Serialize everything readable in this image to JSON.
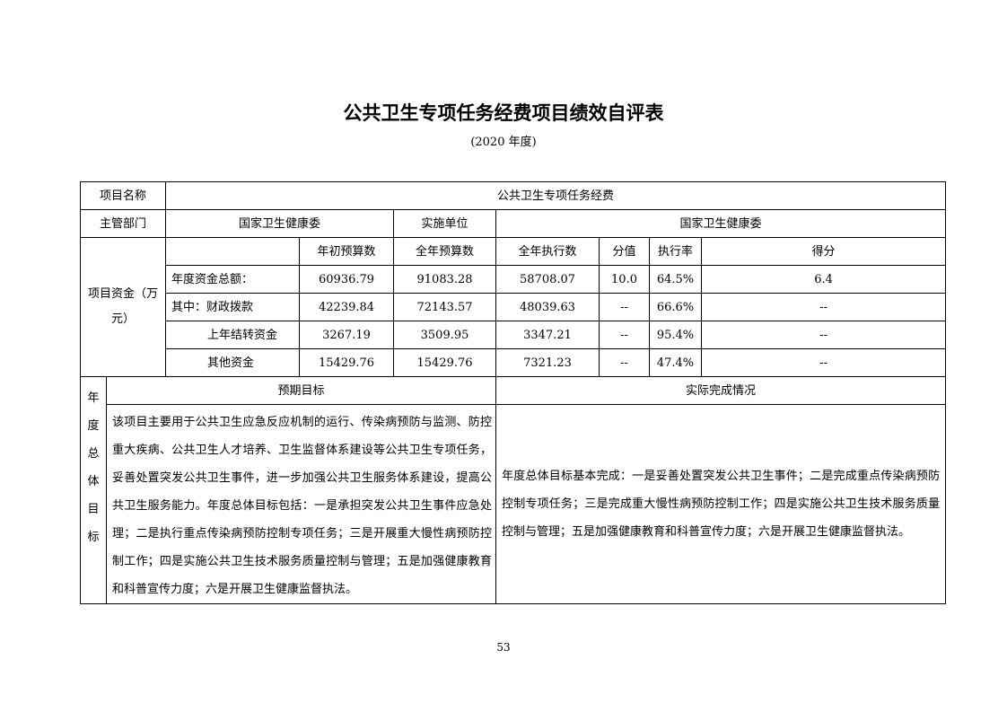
{
  "title": "公共卫生专项任务经费项目绩效自评表",
  "subtitle": "(2020 年度)",
  "project_name": {
    "label": "项目名称",
    "value": "公共卫生专项任务经费"
  },
  "department": {
    "label": "主管部门",
    "value": "国家卫生健康委",
    "impl_label": "实施单位",
    "impl_value": "国家卫生健康委"
  },
  "funds": {
    "label": "项目资金（万元）",
    "headers": [
      "",
      "年初预算数",
      "全年预算数",
      "全年执行数",
      "分值",
      "执行率",
      "得分"
    ],
    "rows": [
      [
        "年度资金总额：",
        "60936.79",
        "91083.28",
        "58708.07",
        "10.0",
        "64.5%",
        "6.4"
      ],
      [
        "其中：财政拨款",
        "42239.84",
        "72143.57",
        "48039.63",
        "--",
        "66.6%",
        "--"
      ],
      [
        "上年结转资金",
        "3267.19",
        "3509.95",
        "3347.21",
        "--",
        "95.4%",
        "--"
      ],
      [
        "其他资金",
        "15429.76",
        "15429.76",
        "7321.23",
        "--",
        "47.4%",
        "--"
      ]
    ]
  },
  "goals": {
    "label": "年度总体目标",
    "expected_header": "预期目标",
    "actual_header": "实际完成情况",
    "expected_text": "该项目主要用于公共卫生应急反应机制的运行、传染病预防与监测、防控重大疾病、公共卫生人才培养、卫生监督体系建设等公共卫生专项任务，妥善处置突发公共卫生事件，进一步加强公共卫生服务体系建设，提高公共卫生服务能力。年度总体目标包括：一是承担突发公共卫生事件应急处理；二是执行重点传染病预防控制专项任务；三是开展重大慢性病预防控制工作；四是实施公共卫生技术服务质量控制与管理；五是加强健康教育和科普宣传力度；六是开展卫生健康监督执法。",
    "actual_text": "年度总体目标基本完成：一是妥善处置突发公共卫生事件；二是完成重点传染病预防控制专项任务；三是完成重大慢性病预防控制工作；四是实施公共卫生技术服务质量控制与管理；五是加强健康教育和科普宣传力度；六是开展卫生健康监督执法。"
  },
  "page_number": "53"
}
